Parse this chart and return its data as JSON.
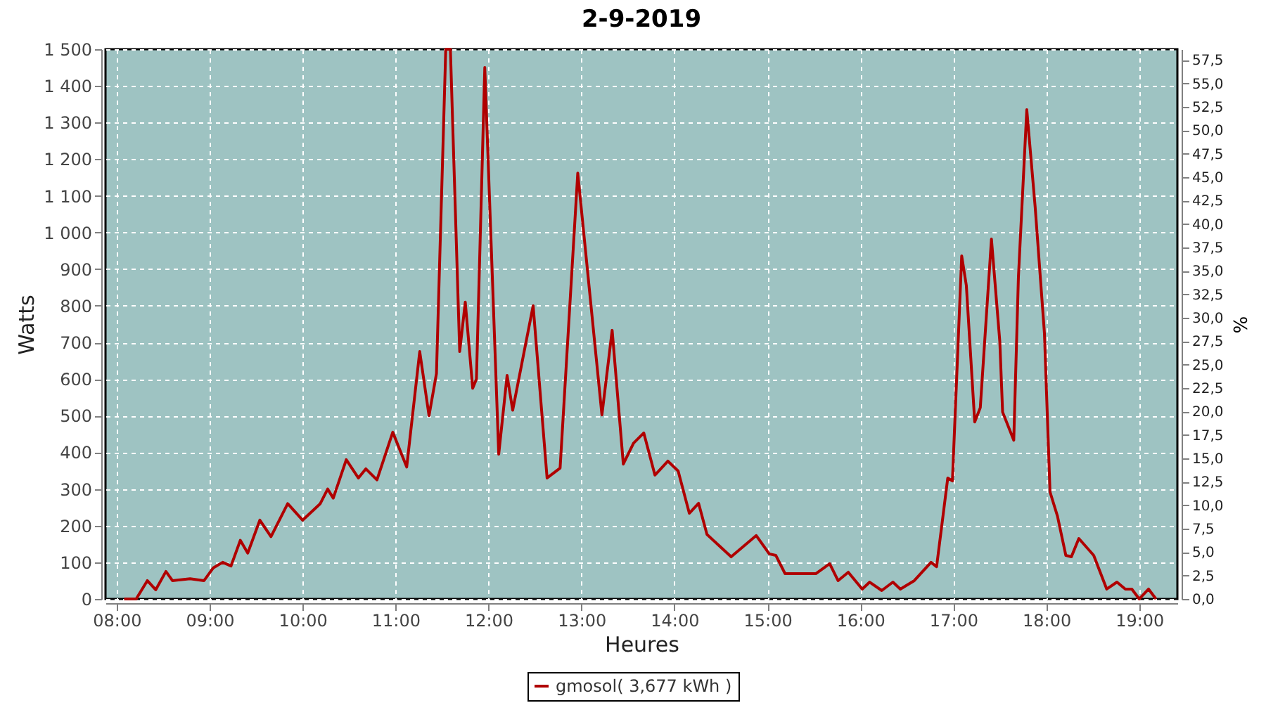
{
  "chart_data": {
    "type": "line",
    "title": "2-9-2019",
    "xlabel": "Heures",
    "ylabel": "Watts",
    "y2label": "%",
    "xlim": [
      7.88,
      19.41
    ],
    "xticks": [
      {
        "value": 8,
        "label": "08:00"
      },
      {
        "value": 9,
        "label": "09:00"
      },
      {
        "value": 10,
        "label": "10:00"
      },
      {
        "value": 11,
        "label": "11:00"
      },
      {
        "value": 12,
        "label": "12:00"
      },
      {
        "value": 13,
        "label": "13:00"
      },
      {
        "value": 14,
        "label": "14:00"
      },
      {
        "value": 15,
        "label": "15:00"
      },
      {
        "value": 16,
        "label": "16:00"
      },
      {
        "value": 17,
        "label": "17:00"
      },
      {
        "value": 18,
        "label": "18:00"
      },
      {
        "value": 19,
        "label": "19:00"
      }
    ],
    "ylim": [
      0,
      1500
    ],
    "yticks": [
      0,
      100,
      200,
      300,
      400,
      500,
      600,
      700,
      800,
      900,
      {
        "value": 1000,
        "label": "1 000"
      },
      {
        "value": 1100,
        "label": "1 100"
      },
      {
        "value": 1200,
        "label": "1 200"
      },
      {
        "value": 1300,
        "label": "1 300"
      },
      {
        "value": 1400,
        "label": "1 400"
      },
      {
        "value": 1500,
        "label": "1 500"
      }
    ],
    "y2lim": [
      0,
      58.65
    ],
    "y2ticks": [
      {
        "value": 0,
        "label": "0,0"
      },
      {
        "value": 2.5,
        "label": "2,5"
      },
      {
        "value": 5,
        "label": "5,0"
      },
      {
        "value": 7.5,
        "label": "7,5"
      },
      {
        "value": 10,
        "label": "10,0"
      },
      {
        "value": 12.5,
        "label": "12,5"
      },
      {
        "value": 15,
        "label": "15,0"
      },
      {
        "value": 17.5,
        "label": "17,5"
      },
      {
        "value": 20,
        "label": "20,0"
      },
      {
        "value": 22.5,
        "label": "22,5"
      },
      {
        "value": 25,
        "label": "25,0"
      },
      {
        "value": 27.5,
        "label": "27,5"
      },
      {
        "value": 30,
        "label": "30,0"
      },
      {
        "value": 32.5,
        "label": "32,5"
      },
      {
        "value": 35,
        "label": "35,0"
      },
      {
        "value": 37.5,
        "label": "37,5"
      },
      {
        "value": 40,
        "label": "40,0"
      },
      {
        "value": 42.5,
        "label": "42,5"
      },
      {
        "value": 45,
        "label": "45,0"
      },
      {
        "value": 47.5,
        "label": "47,5"
      },
      {
        "value": 50,
        "label": "50,0"
      },
      {
        "value": 52.5,
        "label": "52,5"
      },
      {
        "value": 55,
        "label": "55,0"
      },
      {
        "value": 57.5,
        "label": "57,5"
      }
    ],
    "grid": true,
    "legend": "bottom",
    "marker": "none",
    "line_style": "solid",
    "series": [
      {
        "name": "gmosol( 3,677 kWh )",
        "color": "#b00000",
        "x": [
          8.08,
          8.21,
          8.33,
          8.42,
          8.53,
          8.6,
          8.79,
          8.94,
          9.04,
          9.14,
          9.23,
          9.33,
          9.41,
          9.54,
          9.66,
          9.84,
          10.0,
          10.19,
          10.27,
          10.33,
          10.47,
          10.6,
          10.68,
          10.8,
          10.97,
          11.12,
          11.26,
          11.36,
          11.44,
          11.54,
          11.59,
          11.69,
          11.75,
          11.83,
          11.87,
          11.96,
          12.11,
          12.2,
          12.26,
          12.48,
          12.63,
          12.77,
          12.96,
          13.22,
          13.33,
          13.45,
          13.56,
          13.67,
          13.79,
          13.93,
          14.04,
          14.16,
          14.26,
          14.35,
          14.61,
          14.88,
          15.02,
          15.09,
          15.19,
          15.52,
          15.67,
          15.76,
          15.87,
          16.02,
          16.1,
          16.23,
          16.35,
          16.43,
          16.58,
          16.76,
          16.82,
          16.94,
          16.99,
          17.09,
          17.14,
          17.23,
          17.29,
          17.41,
          17.5,
          17.53,
          17.65,
          17.7,
          17.79,
          17.88,
          17.98,
          18.04,
          18.12,
          18.21,
          18.27,
          18.35,
          18.51,
          18.65,
          18.76,
          18.85,
          18.92,
          19.0,
          19.1,
          19.18
        ],
        "values": [
          0,
          0,
          50,
          25,
          75,
          50,
          55,
          50,
          85,
          100,
          90,
          160,
          125,
          215,
          170,
          260,
          215,
          260,
          300,
          275,
          380,
          330,
          355,
          325,
          455,
          360,
          675,
          500,
          615,
          1500,
          1500,
          675,
          810,
          575,
          600,
          1450,
          395,
          610,
          515,
          800,
          330,
          357,
          1162,
          502,
          733,
          368,
          425,
          453,
          338,
          376,
          349,
          234,
          261,
          176,
          115,
          173,
          123,
          119,
          69,
          69,
          96,
          50,
          73,
          27,
          46,
          23,
          46,
          27,
          50,
          100,
          88,
          330,
          322,
          936,
          855,
          483,
          522,
          982,
          702,
          510,
          433,
          878,
          1335,
          1070,
          725,
          292,
          226,
          119,
          115,
          165,
          119,
          27,
          46,
          27,
          27,
          0,
          27,
          0
        ]
      }
    ]
  }
}
